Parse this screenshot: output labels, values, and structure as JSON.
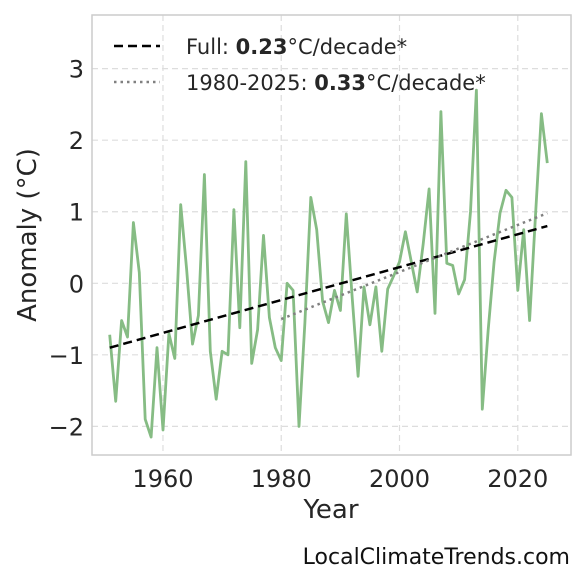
{
  "chart_data": {
    "type": "line",
    "xlabel": "Year",
    "ylabel": "Anomaly (°C)",
    "xlim": [
      1948,
      2029
    ],
    "ylim": [
      -2.4,
      3.75
    ],
    "xticks": [
      1960,
      1980,
      2000,
      2020
    ],
    "xtick_labels": [
      "1960",
      "1980",
      "2000",
      "2020"
    ],
    "yticks": [
      -2,
      -1,
      0,
      1,
      2,
      3
    ],
    "ytick_labels": [
      "−2",
      "−1",
      "0",
      "1",
      "2",
      "3"
    ],
    "grid": true,
    "legend_position": "top-left",
    "series": [
      {
        "color": "#86bc84",
        "x": [
          1951,
          1952,
          1953,
          1954,
          1955,
          1956,
          1957,
          1958,
          1959,
          1960,
          1961,
          1962,
          1963,
          1964,
          1965,
          1966,
          1967,
          1968,
          1969,
          1970,
          1971,
          1972,
          1973,
          1974,
          1975,
          1976,
          1977,
          1978,
          1979,
          1980,
          1981,
          1982,
          1983,
          1984,
          1985,
          1986,
          1987,
          1988,
          1989,
          1990,
          1991,
          1992,
          1993,
          1994,
          1995,
          1996,
          1997,
          1998,
          1999,
          2000,
          2001,
          2002,
          2003,
          2004,
          2005,
          2006,
          2007,
          2008,
          2009,
          2010,
          2011,
          2012,
          2013,
          2014,
          2015,
          2016,
          2017,
          2018,
          2019,
          2020,
          2021,
          2022,
          2023,
          2024,
          2025
        ],
        "y": [
          -0.72,
          -1.65,
          -0.52,
          -0.75,
          0.85,
          0.15,
          -1.9,
          -2.15,
          -0.9,
          -2.05,
          -0.7,
          -1.05,
          1.1,
          0.2,
          -0.85,
          -0.45,
          1.52,
          -0.95,
          -1.62,
          -0.95,
          -1.0,
          1.03,
          -0.62,
          1.7,
          -1.12,
          -0.65,
          0.67,
          -0.48,
          -0.9,
          -1.08,
          0.0,
          -0.1,
          -2.0,
          -0.55,
          1.2,
          0.75,
          -0.25,
          -0.55,
          -0.1,
          -0.38,
          0.97,
          -0.2,
          -1.3,
          -0.05,
          -0.58,
          -0.05,
          -0.95,
          -0.08,
          0.1,
          0.3,
          0.72,
          0.3,
          -0.12,
          0.55,
          1.32,
          -0.42,
          2.4,
          0.28,
          0.25,
          -0.15,
          0.05,
          1.0,
          2.7,
          -1.76,
          -0.65,
          0.3,
          0.98,
          1.3,
          1.2,
          -0.1,
          0.75,
          -0.52,
          0.95,
          2.37,
          1.68
        ]
      }
    ],
    "trends": [
      {
        "label_prefix": "Full: ",
        "label_value": "0.23",
        "label_suffix": "°C/decade*",
        "style": "dashed",
        "color": "#000000",
        "x": [
          1951,
          2025
        ],
        "y": [
          -0.9,
          0.8
        ]
      },
      {
        "label_prefix": "1980-2025: ",
        "label_value": "0.33",
        "label_suffix": "°C/decade*",
        "style": "dotted",
        "color": "#808080",
        "x": [
          1980,
          2025
        ],
        "y": [
          -0.5,
          0.98
        ]
      }
    ]
  },
  "watermark": "LocalClimateTrends.com"
}
